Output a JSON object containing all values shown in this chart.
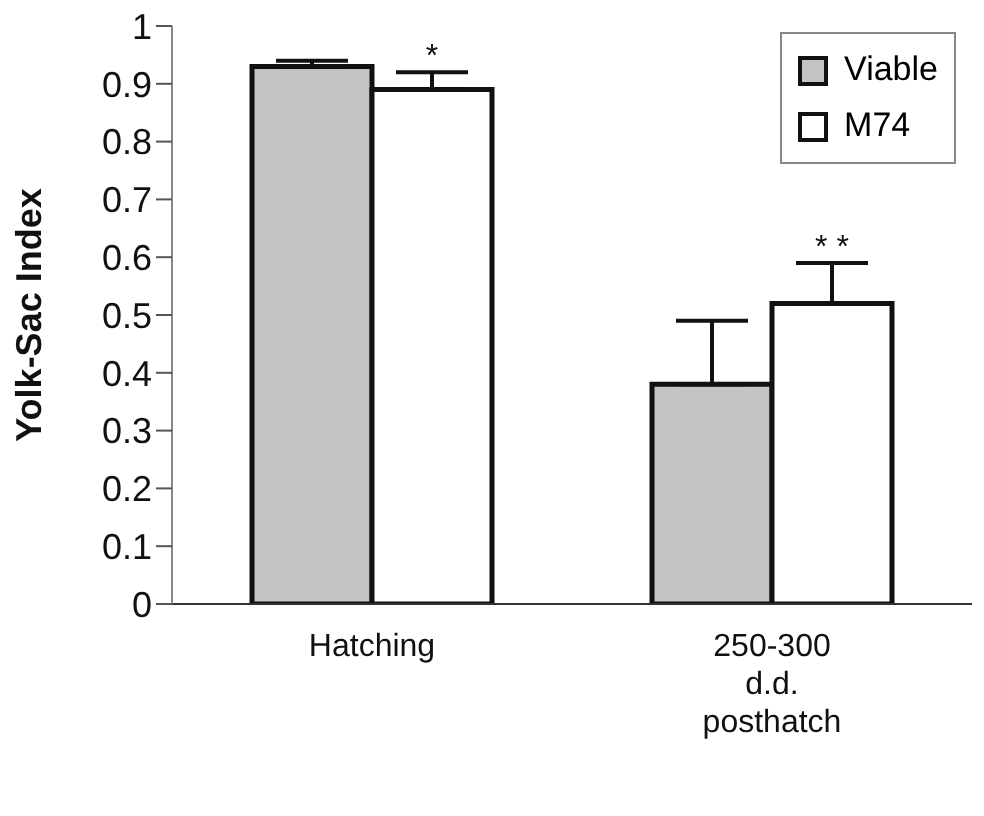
{
  "chart_data": {
    "type": "bar",
    "ylabel": "Yolk-Sac  Index",
    "categories": [
      "Hatching",
      "250-300 d.d. posthatch"
    ],
    "series": [
      {
        "name": "Viable",
        "color": "#c4c4c4",
        "values": [
          0.93,
          0.38
        ],
        "errors": [
          [
            0.93,
            0.94
          ],
          [
            0.38,
            0.49
          ]
        ]
      },
      {
        "name": "M74",
        "color": "#ffffff",
        "values": [
          0.89,
          0.52
        ],
        "errors": [
          [
            0.89,
            0.92
          ],
          [
            0.52,
            0.59
          ]
        ]
      }
    ],
    "annotations": [
      {
        "text": "*",
        "x": "Hatching",
        "y": 0.92
      },
      "* *"
    ],
    "ylim": [
      0,
      1
    ],
    "yticks": [
      0,
      0.1,
      0.2,
      0.3,
      0.4,
      0.5,
      0.6,
      0.7,
      0.8,
      0.9,
      1
    ],
    "grid": false,
    "legend": "top right"
  }
}
